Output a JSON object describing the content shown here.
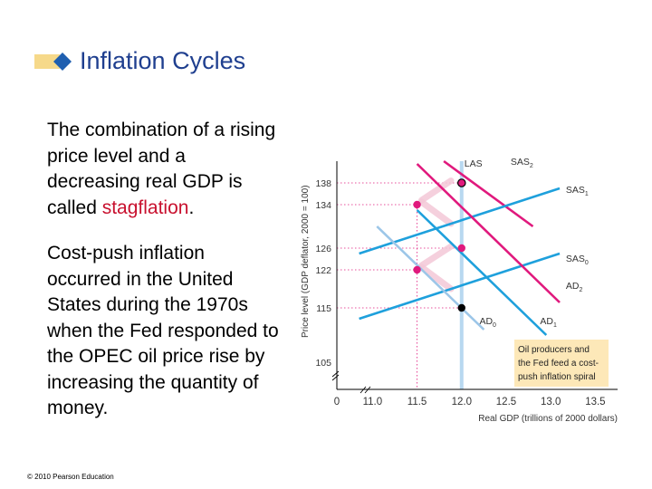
{
  "slide": {
    "title": "Inflation Cycles",
    "para1_pre": "The combination of a rising price level and a decreasing real GDP is called ",
    "para1_highlight": "stagflation",
    "para1_post": ".",
    "para2": "Cost-push inflation occurred in the United States during the 1970s when the Fed responded to the OPEC oil price rise by increasing the quantity of money.",
    "footer": "© 2010 Pearson Education",
    "colors": {
      "title": "#1f3f8f",
      "highlight": "#c8102e",
      "title_deco": "#f6d98a"
    }
  },
  "chart_data": {
    "type": "line",
    "ylabel": "Price level (GDP deflator, 2000 = 100)",
    "xlabel": "Real GDP (trillions of 2000 dollars)",
    "x_ticks": [
      "11.0",
      "11.5",
      "12.0",
      "12.5",
      "13.0",
      "13.5"
    ],
    "y_ticks": [
      "105",
      "115",
      "122",
      "126",
      "134",
      "138"
    ],
    "origin_label": "0",
    "xlim": [
      10.6,
      13.75
    ],
    "ylim": [
      100,
      142
    ],
    "las": {
      "label": "LAS",
      "x": 12.0
    },
    "series": [
      {
        "name": "SAS2",
        "label": "SAS",
        "sub": "2",
        "color": "#e0197d",
        "x": [
          11.8,
          12.8
        ],
        "y": [
          142,
          130
        ],
        "label_at": [
          12.55,
          141.3
        ]
      },
      {
        "name": "SAS1",
        "label": "SAS",
        "sub": "1",
        "color": "#1ea0dc",
        "x": [
          10.85,
          13.1
        ],
        "y": [
          125,
          137
        ],
        "label_at": [
          13.17,
          136.2
        ]
      },
      {
        "name": "SAS0",
        "label": "SAS",
        "sub": "0",
        "color": "#1ea0dc",
        "x": [
          10.85,
          13.1
        ],
        "y": [
          113,
          125
        ],
        "label_at": [
          13.17,
          123.5
        ]
      },
      {
        "name": "AD2",
        "label": "AD",
        "sub": "2",
        "color": "#e0197d",
        "x": [
          11.5,
          13.1
        ],
        "y": [
          141.5,
          116
        ],
        "label_at": [
          13.17,
          118.5
        ]
      },
      {
        "name": "AD1",
        "label": "AD",
        "sub": "1",
        "color": "#1ea0dc",
        "x": [
          11.5,
          12.95
        ],
        "y": [
          133,
          110
        ],
        "label_at": [
          12.88,
          112
        ]
      },
      {
        "name": "AD0",
        "label": "AD",
        "sub": "0",
        "color": "#9cc6e8",
        "x": [
          11.05,
          12.25
        ],
        "y": [
          130,
          111
        ],
        "label_at": [
          12.2,
          112
        ]
      }
    ],
    "equilibria": [
      {
        "x": 12.0,
        "y": 138,
        "fill": "#e0197d",
        "ring": "#000"
      },
      {
        "x": 11.5,
        "y": 134,
        "fill": "#e0197d"
      },
      {
        "x": 12.0,
        "y": 126,
        "fill": "#e0197d"
      },
      {
        "x": 11.5,
        "y": 122,
        "fill": "#e0197d"
      },
      {
        "x": 12.0,
        "y": 115,
        "fill": "#000"
      }
    ],
    "arrows": [
      {
        "from": [
          11.55,
          134.8
        ],
        "to": [
          11.88,
          138.4
        ]
      },
      {
        "from": [
          11.88,
          130.5
        ],
        "to": [
          11.55,
          134.5
        ]
      },
      {
        "from": [
          11.55,
          122.8
        ],
        "to": [
          11.88,
          126.3
        ]
      },
      {
        "from": [
          11.88,
          118.5
        ],
        "to": [
          11.55,
          122.5
        ]
      }
    ],
    "annotation": "Oil producers and the Fed feed a cost-push inflation spiral",
    "annotation_lines": [
      "Oil producers and",
      "the Fed feed a cost-",
      "push inflation spiral"
    ],
    "colors": {
      "sas": "#1ea0dc",
      "ad_light": "#9cc6e8",
      "pink": "#e0197d",
      "grid": "#e0197d",
      "las": "#b8d8f0",
      "axis": "#000000",
      "annotation_bg": "#fde8b8",
      "arrow": "#f4c8d8"
    }
  }
}
